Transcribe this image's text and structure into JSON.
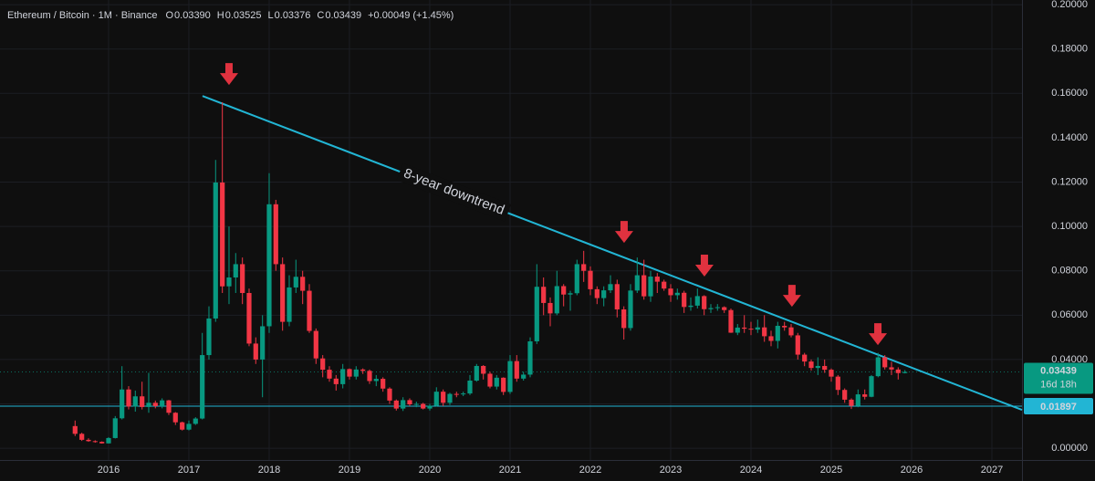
{
  "chart_data": {
    "type": "candlestick",
    "header": {
      "symbol": "Ethereum / Bitcoin · 1M · Binance",
      "fields": [
        {
          "key": "O",
          "value": "0.03390"
        },
        {
          "key": "H",
          "value": "0.03525"
        },
        {
          "key": "L",
          "value": "0.03376"
        },
        {
          "key": "C",
          "value": "0.03439"
        }
      ],
      "change": "+0.00049 (+1.45%)"
    },
    "up_color": "#089981",
    "down_color": "#f23645",
    "x": [
      2015.583,
      2015.667,
      2015.75,
      2015.833,
      2015.917,
      2016,
      2016.083,
      2016.167,
      2016.25,
      2016.333,
      2016.417,
      2016.5,
      2016.583,
      2016.667,
      2016.75,
      2016.833,
      2016.917,
      2017,
      2017.083,
      2017.167,
      2017.25,
      2017.333,
      2017.417,
      2017.5,
      2017.583,
      2017.667,
      2017.75,
      2017.833,
      2017.917,
      2018,
      2018.083,
      2018.167,
      2018.25,
      2018.333,
      2018.417,
      2018.5,
      2018.583,
      2018.667,
      2018.75,
      2018.833,
      2018.917,
      2019,
      2019.083,
      2019.167,
      2019.25,
      2019.333,
      2019.417,
      2019.5,
      2019.583,
      2019.667,
      2019.75,
      2019.833,
      2019.917,
      2020,
      2020.083,
      2020.167,
      2020.25,
      2020.333,
      2020.417,
      2020.5,
      2020.583,
      2020.667,
      2020.75,
      2020.833,
      2020.917,
      2021,
      2021.083,
      2021.167,
      2021.25,
      2021.333,
      2021.417,
      2021.5,
      2021.583,
      2021.667,
      2021.75,
      2021.833,
      2021.917,
      2022,
      2022.083,
      2022.167,
      2022.25,
      2022.333,
      2022.417,
      2022.5,
      2022.583,
      2022.667,
      2022.75,
      2022.833,
      2022.917,
      2023,
      2023.083,
      2023.167,
      2023.25,
      2023.333,
      2023.417,
      2023.5,
      2023.583,
      2023.667,
      2023.75,
      2023.833,
      2023.917,
      2024,
      2024.083,
      2024.167,
      2024.25,
      2024.333,
      2024.417,
      2024.5,
      2024.583,
      2024.667,
      2024.75,
      2024.833,
      2024.917,
      2025,
      2025.083,
      2025.167,
      2025.25,
      2025.333,
      2025.417,
      2025.5,
      2025.583,
      2025.667,
      2025.75,
      2025.833,
      2025.917
    ],
    "open": [
      0.01,
      0.0065,
      0.0038,
      0.0032,
      0.0029,
      0.0022,
      0.0046,
      0.0135,
      0.0265,
      0.0188,
      0.0234,
      0.0186,
      0.0205,
      0.019,
      0.0216,
      0.016,
      0.0117,
      0.0084,
      0.011,
      0.0134,
      0.042,
      0.0585,
      0.1198,
      0.073,
      0.077,
      0.083,
      0.07,
      0.0472,
      0.04,
      0.055,
      0.11,
      0.083,
      0.057,
      0.0725,
      0.0773,
      0.071,
      0.0529,
      0.0405,
      0.0354,
      0.0314,
      0.0289,
      0.0357,
      0.0323,
      0.0355,
      0.0349,
      0.0303,
      0.0313,
      0.0269,
      0.0215,
      0.0179,
      0.0217,
      0.0198,
      0.02,
      0.0179,
      0.0192,
      0.0255,
      0.0205,
      0.0245,
      0.0244,
      0.0247,
      0.0305,
      0.0371,
      0.0336,
      0.0278,
      0.0318,
      0.0254,
      0.0393,
      0.0314,
      0.0332,
      0.0482,
      0.0728,
      0.0655,
      0.0608,
      0.0731,
      0.0693,
      0.0699,
      0.083,
      0.08,
      0.0717,
      0.0677,
      0.0712,
      0.074,
      0.0626,
      0.0542,
      0.0711,
      0.078,
      0.0685,
      0.0774,
      0.0751,
      0.072,
      0.069,
      0.0701,
      0.0637,
      0.0643,
      0.0686,
      0.0627,
      0.0632,
      0.0636,
      0.0623,
      0.0521,
      0.0544,
      0.0539,
      0.0535,
      0.0545,
      0.0505,
      0.0484,
      0.0552,
      0.0545,
      0.0509,
      0.0422,
      0.0391,
      0.0362,
      0.0371,
      0.0354,
      0.0323,
      0.0263,
      0.0219,
      0.0191,
      0.0243,
      0.0232,
      0.0325,
      0.041,
      0.0365,
      0.0355,
      0.0339
    ],
    "high": [
      0.0125,
      0.007,
      0.0045,
      0.0036,
      0.0031,
      0.005,
      0.0145,
      0.037,
      0.028,
      0.026,
      0.03,
      0.034,
      0.0215,
      0.0225,
      0.0218,
      0.0163,
      0.012,
      0.0125,
      0.014,
      0.052,
      0.064,
      0.13,
      0.156,
      0.1,
      0.088,
      0.086,
      0.072,
      0.05,
      0.06,
      0.124,
      0.112,
      0.086,
      0.078,
      0.085,
      0.08,
      0.074,
      0.054,
      0.042,
      0.037,
      0.033,
      0.038,
      0.036,
      0.037,
      0.036,
      0.0355,
      0.033,
      0.032,
      0.0275,
      0.022,
      0.023,
      0.0225,
      0.021,
      0.0205,
      0.02,
      0.0275,
      0.0265,
      0.025,
      0.0255,
      0.0255,
      0.033,
      0.038,
      0.0375,
      0.0345,
      0.033,
      0.032,
      0.042,
      0.042,
      0.0345,
      0.05,
      0.083,
      0.077,
      0.068,
      0.08,
      0.074,
      0.071,
      0.085,
      0.089,
      0.082,
      0.073,
      0.073,
      0.078,
      0.076,
      0.064,
      0.074,
      0.086,
      0.085,
      0.08,
      0.079,
      0.076,
      0.074,
      0.072,
      0.071,
      0.068,
      0.072,
      0.069,
      0.065,
      0.065,
      0.064,
      0.063,
      0.056,
      0.06,
      0.057,
      0.058,
      0.06,
      0.053,
      0.057,
      0.057,
      0.056,
      0.052,
      0.043,
      0.04,
      0.041,
      0.04,
      0.036,
      0.033,
      0.027,
      0.0225,
      0.0265,
      0.0265,
      0.033,
      0.043,
      0.042,
      0.039,
      0.0365,
      0.03525
    ],
    "low": [
      0.0055,
      0.0033,
      0.0029,
      0.0025,
      0.0021,
      0.0021,
      0.0044,
      0.013,
      0.0175,
      0.0165,
      0.0175,
      0.016,
      0.018,
      0.018,
      0.015,
      0.0105,
      0.008,
      0.008,
      0.0105,
      0.013,
      0.04,
      0.057,
      0.07,
      0.065,
      0.07,
      0.065,
      0.046,
      0.038,
      0.023,
      0.052,
      0.08,
      0.053,
      0.055,
      0.07,
      0.065,
      0.052,
      0.038,
      0.032,
      0.03,
      0.026,
      0.027,
      0.031,
      0.031,
      0.0335,
      0.029,
      0.028,
      0.0255,
      0.02,
      0.017,
      0.0168,
      0.019,
      0.0185,
      0.0175,
      0.017,
      0.0188,
      0.019,
      0.0195,
      0.023,
      0.0235,
      0.024,
      0.03,
      0.031,
      0.027,
      0.0265,
      0.024,
      0.0245,
      0.03,
      0.0305,
      0.032,
      0.047,
      0.06,
      0.055,
      0.06,
      0.064,
      0.062,
      0.069,
      0.075,
      0.069,
      0.065,
      0.064,
      0.07,
      0.059,
      0.049,
      0.053,
      0.07,
      0.067,
      0.066,
      0.07,
      0.071,
      0.066,
      0.067,
      0.061,
      0.062,
      0.063,
      0.06,
      0.061,
      0.062,
      0.061,
      0.052,
      0.051,
      0.052,
      0.051,
      0.052,
      0.048,
      0.046,
      0.045,
      0.053,
      0.05,
      0.04,
      0.037,
      0.035,
      0.033,
      0.034,
      0.03,
      0.024,
      0.0205,
      0.0177,
      0.0185,
      0.022,
      0.023,
      0.032,
      0.0355,
      0.033,
      0.031,
      0.03376
    ],
    "close": [
      0.0065,
      0.0038,
      0.0032,
      0.0029,
      0.0022,
      0.0046,
      0.0135,
      0.0265,
      0.0188,
      0.0234,
      0.0186,
      0.0205,
      0.019,
      0.0216,
      0.016,
      0.0117,
      0.0084,
      0.011,
      0.0134,
      0.042,
      0.0585,
      0.1198,
      0.073,
      0.077,
      0.083,
      0.07,
      0.0472,
      0.04,
      0.055,
      0.11,
      0.083,
      0.057,
      0.0725,
      0.0773,
      0.071,
      0.0529,
      0.0405,
      0.0354,
      0.0314,
      0.0289,
      0.0357,
      0.0323,
      0.0355,
      0.0349,
      0.0303,
      0.0313,
      0.0269,
      0.0215,
      0.0179,
      0.0217,
      0.0198,
      0.02,
      0.0179,
      0.0192,
      0.0255,
      0.0205,
      0.0245,
      0.0244,
      0.0247,
      0.0305,
      0.0371,
      0.0336,
      0.0278,
      0.0318,
      0.0254,
      0.0393,
      0.0314,
      0.0332,
      0.0482,
      0.0728,
      0.0655,
      0.0608,
      0.0731,
      0.0693,
      0.0699,
      0.083,
      0.08,
      0.0717,
      0.0677,
      0.0712,
      0.074,
      0.0626,
      0.0542,
      0.0711,
      0.078,
      0.0685,
      0.0774,
      0.0751,
      0.072,
      0.069,
      0.0701,
      0.0637,
      0.0643,
      0.0686,
      0.0627,
      0.0632,
      0.0636,
      0.0623,
      0.0521,
      0.0544,
      0.0539,
      0.0535,
      0.0545,
      0.0505,
      0.0484,
      0.0552,
      0.0545,
      0.0509,
      0.0422,
      0.0391,
      0.0362,
      0.0371,
      0.0354,
      0.0323,
      0.0263,
      0.0219,
      0.0191,
      0.0243,
      0.0232,
      0.0325,
      0.041,
      0.0365,
      0.0355,
      0.0339,
      0.03439
    ],
    "xlim": [
      2014.648,
      2027.375
    ],
    "xticks": [
      2016,
      2017,
      2018,
      2019,
      2020,
      2021,
      2022,
      2023,
      2024,
      2025,
      2026,
      2027
    ],
    "ylim": [
      -0.0053,
      0.2021
    ],
    "yticks": [
      {
        "value": 0,
        "label": "0.00000"
      },
      {
        "value": 0.02,
        "label": "0.02000"
      },
      {
        "value": 0.04,
        "label": "0.04000"
      },
      {
        "value": 0.06,
        "label": "0.06000"
      },
      {
        "value": 0.08,
        "label": "0.08000"
      },
      {
        "value": 0.1,
        "label": "0.10000"
      },
      {
        "value": 0.12,
        "label": "0.12000"
      },
      {
        "value": 0.14,
        "label": "0.14000"
      },
      {
        "value": 0.16,
        "label": "0.16000"
      },
      {
        "value": 0.18,
        "label": "0.18000"
      },
      {
        "value": 0.2,
        "label": "0.20000"
      }
    ],
    "grid": true,
    "last_price": {
      "value": 0.03439,
      "label": "0.03439",
      "countdown": "16d 18h"
    },
    "support_line": {
      "value": 0.01897,
      "label": "0.01897",
      "color": "#22b5d4"
    },
    "trendline": {
      "x": [
        2017.17,
        2027.375
      ],
      "y": [
        0.1588,
        0.0173
      ],
      "label": "8-year downtrend",
      "label_x": 2020.3,
      "color": "#22b5d4"
    },
    "arrows": {
      "x": [
        2017.5,
        2022.42,
        2023.42,
        2024.51,
        2025.58
      ],
      "y": [
        0.1638,
        0.0926,
        0.0774,
        0.0638,
        0.0465
      ],
      "color": "#e0323f"
    }
  }
}
